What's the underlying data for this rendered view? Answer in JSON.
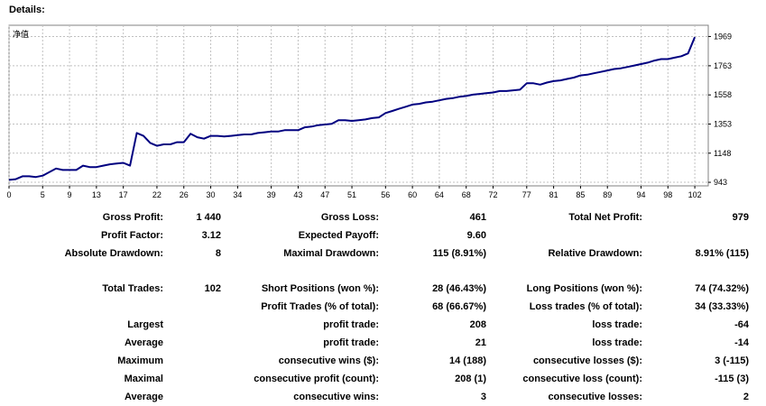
{
  "report": {
    "title": "Details:"
  },
  "chart_data": {
    "type": "line",
    "title": "净值",
    "x_ticks": [
      "0",
      "5",
      "9",
      "13",
      "17",
      "22",
      "26",
      "30",
      "34",
      "39",
      "43",
      "47",
      "51",
      "56",
      "60",
      "64",
      "68",
      "72",
      "77",
      "81",
      "85",
      "89",
      "94",
      "98",
      "102"
    ],
    "y_ticks": [
      "943",
      "1148",
      "1353",
      "1558",
      "1763",
      "1969"
    ],
    "xlim": [
      0,
      104
    ],
    "ylim": [
      918,
      2048
    ],
    "grid": true,
    "series": [
      {
        "color": "#000080",
        "x": [
          0,
          1,
          2,
          3,
          4,
          5,
          6,
          7,
          8,
          9,
          10,
          11,
          12,
          13,
          14,
          15,
          16,
          17,
          18,
          19,
          20,
          21,
          22,
          23,
          24,
          25,
          26,
          27,
          28,
          29,
          30,
          31,
          32,
          33,
          34,
          35,
          36,
          37,
          38,
          39,
          40,
          41,
          42,
          43,
          44,
          45,
          46,
          47,
          48,
          49,
          50,
          51,
          52,
          53,
          54,
          55,
          56,
          57,
          58,
          59,
          60,
          61,
          62,
          63,
          64,
          65,
          66,
          67,
          68,
          69,
          70,
          71,
          72,
          73,
          74,
          75,
          76,
          77,
          78,
          79,
          80,
          81,
          82,
          83,
          84,
          85,
          86,
          87,
          88,
          89,
          90,
          91,
          92,
          93,
          94,
          95,
          96,
          97,
          98,
          99,
          100,
          101,
          102
        ],
        "y": [
          960,
          965,
          985,
          985,
          980,
          990,
          1015,
          1040,
          1030,
          1030,
          1030,
          1060,
          1050,
          1050,
          1060,
          1070,
          1075,
          1080,
          1060,
          1290,
          1270,
          1220,
          1200,
          1210,
          1210,
          1225,
          1225,
          1285,
          1260,
          1250,
          1270,
          1270,
          1265,
          1270,
          1275,
          1280,
          1280,
          1290,
          1295,
          1300,
          1300,
          1310,
          1310,
          1310,
          1330,
          1335,
          1345,
          1350,
          1355,
          1380,
          1380,
          1375,
          1380,
          1385,
          1395,
          1400,
          1430,
          1445,
          1460,
          1475,
          1490,
          1495,
          1505,
          1510,
          1520,
          1530,
          1535,
          1545,
          1550,
          1560,
          1565,
          1570,
          1575,
          1585,
          1585,
          1590,
          1595,
          1640,
          1640,
          1630,
          1645,
          1655,
          1660,
          1670,
          1680,
          1695,
          1700,
          1710,
          1720,
          1730,
          1740,
          1745,
          1755,
          1765,
          1775,
          1785,
          1800,
          1810,
          1810,
          1820,
          1830,
          1850,
          1965
        ]
      }
    ]
  },
  "stats": {
    "gross_profit_label": "Gross Profit:",
    "gross_profit": "1 440",
    "gross_loss_label": "Gross Loss:",
    "gross_loss": "461",
    "total_net_profit_label": "Total Net Profit:",
    "total_net_profit": "979",
    "profit_factor_label": "Profit Factor:",
    "profit_factor": "3.12",
    "expected_payoff_label": "Expected Payoff:",
    "expected_payoff": "9.60",
    "absolute_drawdown_label": "Absolute Drawdown:",
    "absolute_drawdown": "8",
    "maximal_drawdown_label": "Maximal Drawdown:",
    "maximal_drawdown": "115 (8.91%)",
    "relative_drawdown_label": "Relative Drawdown:",
    "relative_drawdown": "8.91% (115)",
    "total_trades_label": "Total Trades:",
    "total_trades": "102",
    "short_positions_label": "Short Positions (won %):",
    "short_positions": "28 (46.43%)",
    "long_positions_label": "Long Positions (won %):",
    "long_positions": "74 (74.32%)",
    "profit_trades_label": "Profit Trades (% of total):",
    "profit_trades": "68 (66.67%)",
    "loss_trades_label": "Loss trades (% of total):",
    "loss_trades": "34 (33.33%)",
    "largest_label": "Largest",
    "largest_profit_label": "profit trade:",
    "largest_profit": "208",
    "largest_loss_label": "loss trade:",
    "largest_loss": "-64",
    "average_label": "Average",
    "average_profit_label": "profit trade:",
    "average_profit": "21",
    "average_loss_label": "loss trade:",
    "average_loss": "-14",
    "maximum_label": "Maximum",
    "max_cons_wins_label": "consecutive wins ($):",
    "max_cons_wins": "14 (188)",
    "max_cons_losses_label": "consecutive losses ($):",
    "max_cons_losses": "3 (-115)",
    "maximal_label": "Maximal",
    "maximal_cons_profit_label": "consecutive profit (count):",
    "maximal_cons_profit": "208 (1)",
    "maximal_cons_loss_label": "consecutive loss (count):",
    "maximal_cons_loss": "-115 (3)",
    "average2_label": "Average",
    "avg_cons_wins_label": "consecutive wins:",
    "avg_cons_wins": "3",
    "avg_cons_losses_label": "consecutive losses:",
    "avg_cons_losses": "2"
  }
}
